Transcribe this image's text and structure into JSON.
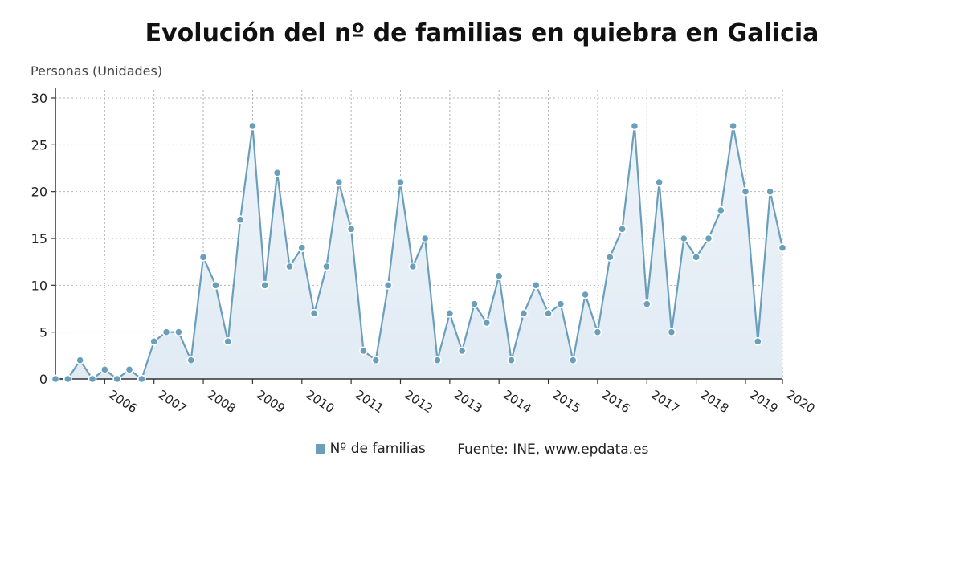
{
  "chart_data": {
    "type": "area",
    "title": "Evolución del nº de familias en quiebra en Galicia",
    "ylabel": "Personas (Unidades)",
    "ylim": [
      0,
      30
    ],
    "yticks": [
      0,
      5,
      10,
      15,
      20,
      25,
      30
    ],
    "xticks": [
      "2006",
      "2007",
      "2008",
      "2009",
      "2010",
      "2011",
      "2012",
      "2013",
      "2014",
      "2015",
      "2016",
      "2017",
      "2018",
      "2019",
      "2020"
    ],
    "grid": true,
    "legend_position": "bottom",
    "series": [
      {
        "name": "Nº de familias",
        "color": "#6a9fbc",
        "values": [
          0,
          0,
          2,
          0,
          1,
          0,
          1,
          0,
          4,
          5,
          5,
          2,
          13,
          10,
          4,
          17,
          27,
          10,
          22,
          12,
          14,
          7,
          12,
          21,
          16,
          3,
          2,
          10,
          21,
          12,
          15,
          2,
          7,
          3,
          8,
          6,
          11,
          2,
          7,
          10,
          7,
          8,
          2,
          9,
          5,
          13,
          16,
          27,
          8,
          21,
          5,
          15,
          13,
          15,
          18,
          27,
          20,
          4,
          20,
          14
        ]
      }
    ],
    "source": "Fuente: INE, www.epdata.es"
  }
}
